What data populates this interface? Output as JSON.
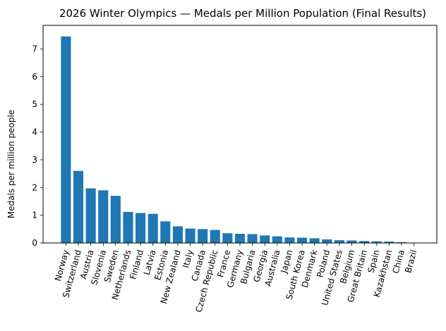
{
  "chart_data": {
    "type": "bar",
    "title": "2026 Winter Olympics — Medals per Million Population (Final Results)",
    "xlabel": "",
    "ylabel": "Medals per million people",
    "ylim": [
      0,
      7.85
    ],
    "yticks": [
      0,
      1,
      2,
      3,
      4,
      5,
      6,
      7
    ],
    "grid": false,
    "bar_color": "#1f77b4",
    "categories": [
      "Norway",
      "Switzerland",
      "Austria",
      "Slovenia",
      "Sweden",
      "Netherlands",
      "Finland",
      "Latvia",
      "Estonia",
      "New Zealand",
      "Italy",
      "Canada",
      "Czech Republic",
      "France",
      "Germany",
      "Bulgaria",
      "Georgia",
      "Australia",
      "Japan",
      "South Korea",
      "Denmark",
      "Poland",
      "United States",
      "Belgium",
      "Great Britain",
      "Spain",
      "Kazakhstan",
      "China",
      "Brazil"
    ],
    "values": [
      7.45,
      2.6,
      1.97,
      1.9,
      1.7,
      1.12,
      1.08,
      1.05,
      0.78,
      0.6,
      0.52,
      0.5,
      0.47,
      0.35,
      0.33,
      0.32,
      0.27,
      0.24,
      0.2,
      0.19,
      0.17,
      0.13,
      0.1,
      0.09,
      0.07,
      0.06,
      0.05,
      0.03,
      0.01
    ]
  }
}
